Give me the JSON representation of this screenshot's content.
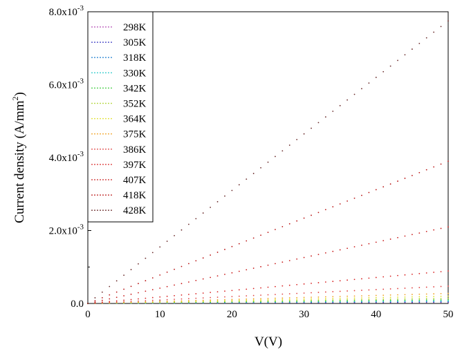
{
  "chart_data": {
    "type": "scatter",
    "xlabel": "V(V)",
    "ylabel_text": "Current density (A/mm",
    "ylabel_sup": "2",
    "ylabel_close": ")",
    "xlim": [
      0,
      50
    ],
    "ylim": [
      0,
      0.008
    ],
    "x_ticks": [
      0,
      10,
      20,
      30,
      40,
      50
    ],
    "x_tick_labels": [
      "0",
      "10",
      "20",
      "30",
      "40",
      "50"
    ],
    "y_ticks": [
      {
        "value": 0,
        "mantissa": "0.0",
        "exp": ""
      },
      {
        "value": 0.002,
        "mantissa": "2.0x10",
        "exp": "-3"
      },
      {
        "value": 0.004,
        "mantissa": "4.0x10",
        "exp": "-3"
      },
      {
        "value": 0.006,
        "mantissa": "6.0x10",
        "exp": "-3"
      },
      {
        "value": 0.008,
        "mantissa": "8.0x10",
        "exp": "-3"
      }
    ],
    "legend_position": "top-left",
    "x": [
      0,
      1,
      2,
      3,
      4,
      5,
      6,
      7,
      8,
      9,
      10,
      11,
      12,
      13,
      14,
      15,
      16,
      17,
      18,
      19,
      20,
      21,
      22,
      23,
      24,
      25,
      26,
      27,
      28,
      29,
      30,
      31,
      32,
      33,
      34,
      35,
      36,
      37,
      38,
      39,
      40,
      41,
      42,
      43,
      44,
      45,
      46,
      47,
      48,
      49,
      50
    ],
    "series": [
      {
        "name": "298K",
        "color": "#b040b0",
        "slope": 6e-07
      },
      {
        "name": "305K",
        "color": "#3030c0",
        "slope": 8e-07
      },
      {
        "name": "318K",
        "color": "#2080d0",
        "slope": 1.1e-06
      },
      {
        "name": "330K",
        "color": "#20c8c8",
        "slope": 1.5e-06
      },
      {
        "name": "342K",
        "color": "#30c830",
        "slope": 2e-06
      },
      {
        "name": "352K",
        "color": "#a8d020",
        "slope": 2.8e-06
      },
      {
        "name": "364K",
        "color": "#e0e020",
        "slope": 4e-06
      },
      {
        "name": "375K",
        "color": "#f0a020",
        "slope": 5.5e-06
      },
      {
        "name": "386K",
        "color": "#e04040",
        "slope": 9.5e-06
      },
      {
        "name": "397K",
        "color": "#d82020",
        "slope": 1.78e-05
      },
      {
        "name": "407K",
        "color": "#c81818",
        "slope": 4.2e-05
      },
      {
        "name": "418K",
        "color": "#b81010",
        "slope": 7.8e-05
      },
      {
        "name": "428K",
        "color": "#682828",
        "slope": 0.000155
      }
    ]
  }
}
